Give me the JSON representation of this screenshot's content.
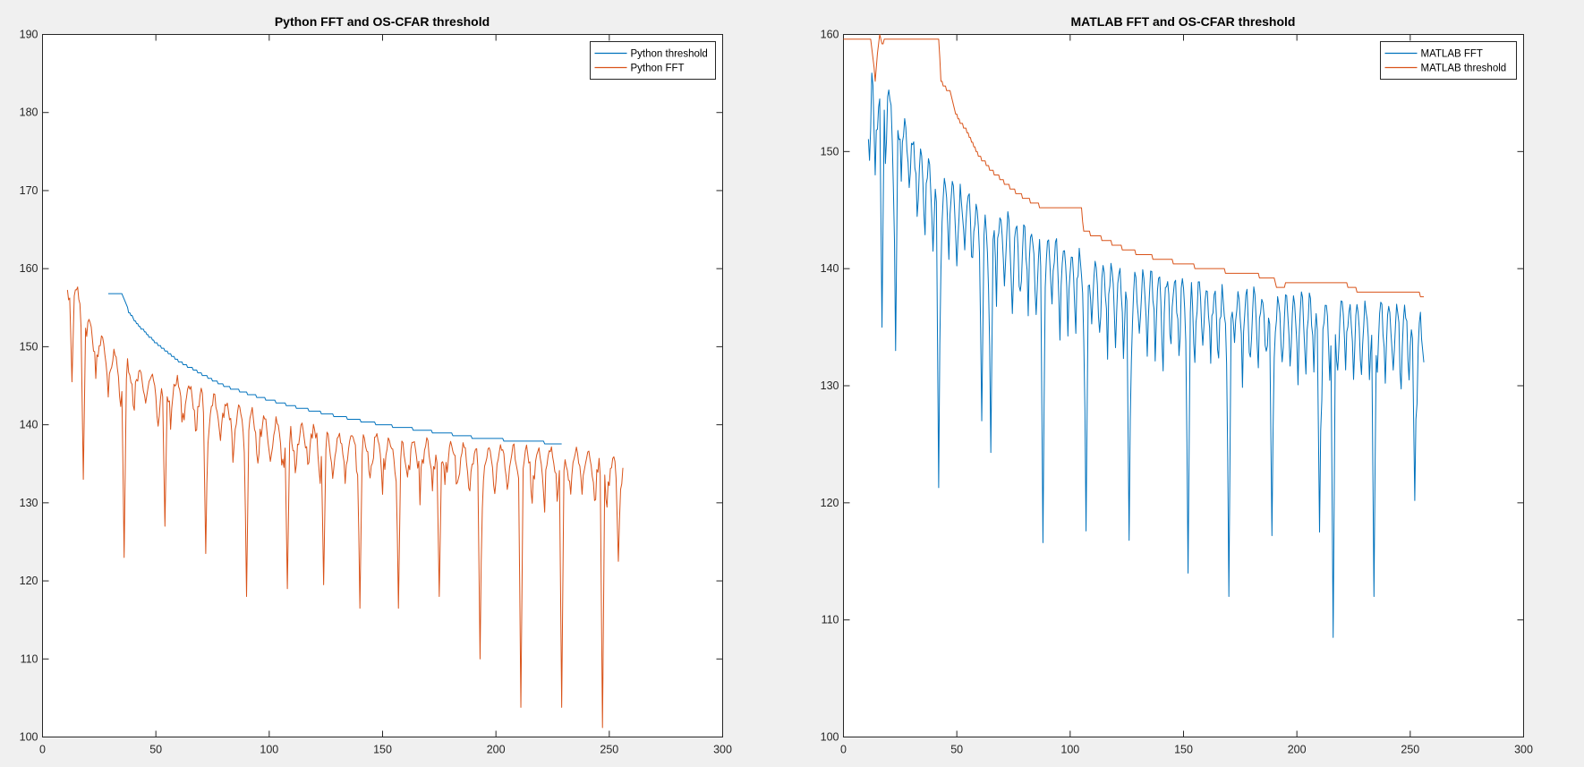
{
  "figure": {
    "background": "#f0f0f0"
  },
  "colors": {
    "blue": "#0072bd",
    "orange": "#d95319"
  },
  "chart_data": [
    {
      "type": "line",
      "title": "Python FFT and OS-CFAR threshold",
      "xlabel": "",
      "ylabel": "",
      "xlim": [
        0,
        300
      ],
      "ylim": [
        100,
        190
      ],
      "xticks": [
        0,
        50,
        100,
        150,
        200,
        250,
        300
      ],
      "yticks": [
        100,
        110,
        120,
        130,
        140,
        150,
        160,
        170,
        180,
        190
      ],
      "grid": false,
      "legend_placement": "top-right",
      "legend_order": [
        "threshold",
        "fft"
      ],
      "series": [
        {
          "id": "fft",
          "name": "Python FFT",
          "color": "#d95319",
          "generator": {
            "x_start": 11,
            "x_end": 256,
            "step": 0.5,
            "envelope": [
              [
                11,
                158.5
              ],
              [
                13,
                159.5
              ],
              [
                20,
                154
              ],
              [
                30,
                150
              ],
              [
                40,
                148
              ],
              [
                60,
                146
              ],
              [
                80,
                143.5
              ],
              [
                100,
                141
              ],
              [
                130,
                139.5
              ],
              [
                160,
                138.5
              ],
              [
                200,
                137.5
              ],
              [
                240,
                137
              ],
              [
                256,
                136
              ]
            ],
            "spike_period": 5.5,
            "spike_phase": 1.2,
            "spike_depth": 9,
            "seed": 7,
            "big_dips": [
              [
                13,
                145.5
              ],
              [
                18,
                133
              ],
              [
                36,
                123
              ],
              [
                54,
                127
              ],
              [
                72,
                123.5
              ],
              [
                90,
                118
              ],
              [
                108,
                119
              ],
              [
                124,
                119.5
              ],
              [
                140,
                116.5
              ],
              [
                157,
                116.5
              ],
              [
                175,
                118
              ],
              [
                193,
                110
              ],
              [
                211,
                103.8
              ],
              [
                229,
                103.8
              ],
              [
                247,
                101.2
              ],
              [
                254,
                122.5
              ]
            ]
          }
        },
        {
          "id": "threshold",
          "name": "Python threshold",
          "color": "#0072bd",
          "generator": {
            "x_start": 29,
            "x_end": 229,
            "step": 0.5,
            "shape": [
              [
                29,
                156.8
              ],
              [
                35,
                156.8
              ],
              [
                38,
                154.5
              ],
              [
                42,
                152.8
              ],
              [
                50,
                150.5
              ],
              [
                60,
                148.2
              ],
              [
                70,
                146.5
              ],
              [
                80,
                145
              ],
              [
                95,
                143.6
              ],
              [
                110,
                142.4
              ],
              [
                130,
                141.1
              ],
              [
                150,
                140
              ],
              [
                170,
                139.2
              ],
              [
                190,
                138.4
              ],
              [
                210,
                137.9
              ],
              [
                229,
                137.6
              ]
            ],
            "quantize": 0.35
          }
        }
      ]
    },
    {
      "type": "line",
      "title": "MATLAB FFT and OS-CFAR threshold",
      "xlabel": "",
      "ylabel": "",
      "xlim": [
        0,
        300
      ],
      "ylim": [
        100,
        160
      ],
      "xticks": [
        0,
        50,
        100,
        150,
        200,
        250,
        300
      ],
      "yticks": [
        100,
        110,
        120,
        130,
        140,
        150,
        160
      ],
      "grid": false,
      "legend_placement": "top-right",
      "legend_order": [
        "fft",
        "threshold"
      ],
      "series": [
        {
          "id": "fft",
          "name": "MATLAB FFT",
          "color": "#0072bd",
          "generator": {
            "x_start": 11,
            "x_end": 256,
            "step": 0.5,
            "envelope": [
              [
                11,
                155
              ],
              [
                13,
                159
              ],
              [
                16,
                158
              ],
              [
                20,
                156
              ],
              [
                30,
                152
              ],
              [
                40,
                149
              ],
              [
                60,
                146
              ],
              [
                80,
                144
              ],
              [
                100,
                142
              ],
              [
                130,
                140
              ],
              [
                160,
                139
              ],
              [
                200,
                138
              ],
              [
                240,
                137.2
              ],
              [
                256,
                137
              ]
            ],
            "spike_period": 3.5,
            "spike_phase": 0.8,
            "spike_depth": 10,
            "seed": 11,
            "big_dips": [
              [
                11,
                152
              ],
              [
                14,
                148
              ],
              [
                17,
                135
              ],
              [
                23,
                133
              ],
              [
                42,
                121.3
              ],
              [
                61,
                127
              ],
              [
                65,
                124.3
              ],
              [
                88,
                116.6
              ],
              [
                107,
                117.6
              ],
              [
                126,
                116.8
              ],
              [
                152,
                114
              ],
              [
                170,
                112
              ],
              [
                189,
                117.2
              ],
              [
                210,
                117.5
              ],
              [
                216,
                108.5
              ],
              [
                234,
                112
              ],
              [
                252,
                120.2
              ],
              [
                256,
                132
              ]
            ]
          }
        },
        {
          "id": "threshold",
          "name": "MATLAB threshold",
          "color": "#d95319",
          "generator": {
            "x_start": 0,
            "x_end": 256,
            "step": 0.5,
            "shape": [
              [
                0,
                159.6
              ],
              [
                12,
                159.6
              ],
              [
                13,
                158
              ],
              [
                14,
                156
              ],
              [
                15,
                158.5
              ],
              [
                16,
                160
              ],
              [
                17,
                159
              ],
              [
                18,
                159.6
              ],
              [
                42,
                159.6
              ],
              [
                43,
                156
              ],
              [
                47,
                155
              ],
              [
                50,
                153
              ],
              [
                55,
                151.5
              ],
              [
                60,
                149.5
              ],
              [
                70,
                147.5
              ],
              [
                80,
                146
              ],
              [
                90,
                145
              ],
              [
                105,
                145
              ],
              [
                106,
                143.2
              ],
              [
                115,
                142.5
              ],
              [
                125,
                141.6
              ],
              [
                140,
                140.8
              ],
              [
                160,
                140
              ],
              [
                180,
                139.5
              ],
              [
                190,
                139.2
              ],
              [
                191,
                138.3
              ],
              [
                196,
                138.7
              ],
              [
                220,
                138.8
              ],
              [
                230,
                137.8
              ],
              [
                254,
                137.8
              ],
              [
                256,
                137.4
              ]
            ],
            "quantize": 0.4
          }
        }
      ]
    }
  ]
}
